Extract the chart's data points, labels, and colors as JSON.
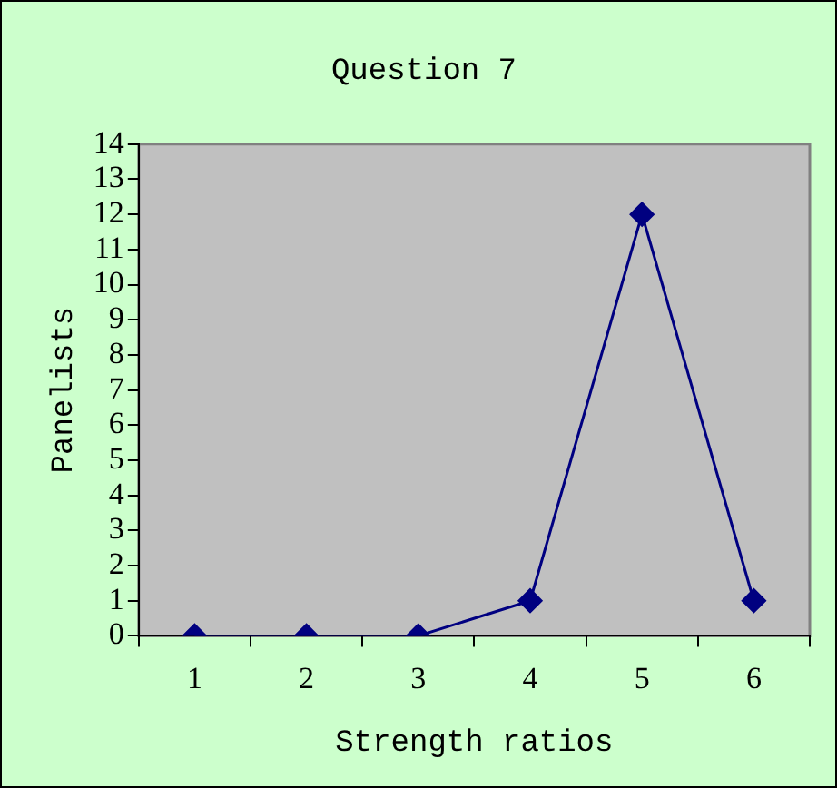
{
  "chart_data": {
    "type": "line",
    "title": "Question 7",
    "xlabel": "Strength ratios",
    "ylabel": "Panelists",
    "categories": [
      "1",
      "2",
      "3",
      "4",
      "5",
      "6"
    ],
    "series": [
      {
        "color": "#000080",
        "values": [
          0,
          0,
          0,
          1,
          12,
          1
        ]
      }
    ],
    "ylim": [
      0,
      14
    ],
    "yticks": [
      0,
      1,
      2,
      3,
      4,
      5,
      6,
      7,
      8,
      9,
      10,
      11,
      12,
      13,
      14
    ],
    "grid": false,
    "legend": false,
    "marker": "diamond",
    "line_style": "solid"
  }
}
